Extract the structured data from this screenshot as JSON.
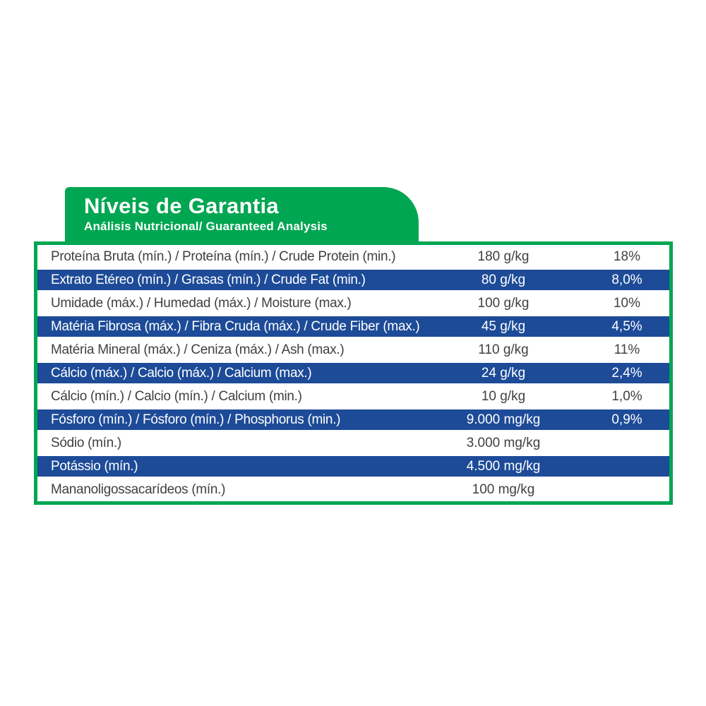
{
  "header": {
    "title": "Níveis de Garantia",
    "subtitle": "Análisis Nutricional/ Guaranteed Analysis"
  },
  "colors": {
    "green": "#00a651",
    "blue": "#1d4b98",
    "text_dark": "#414042",
    "text_light": "#ffffff"
  },
  "table": {
    "rows": [
      {
        "label": "Proteína Bruta (mín.) / Proteína (mín.) / Crude Protein (min.)",
        "amount": "180 g/kg",
        "percent": "18%",
        "highlight": false
      },
      {
        "label": "Extrato Etéreo (mín.) / Grasas (mín.) / Crude Fat (min.)",
        "amount": "80 g/kg",
        "percent": "8,0%",
        "highlight": true
      },
      {
        "label": "Umidade (máx.) / Humedad (máx.) / Moisture (max.)",
        "amount": "100 g/kg",
        "percent": "10%",
        "highlight": false
      },
      {
        "label": "Matéria Fibrosa (máx.) / Fibra Cruda (máx.) / Crude Fiber (max.)",
        "amount": "45 g/kg",
        "percent": "4,5%",
        "highlight": true
      },
      {
        "label": "Matéria Mineral (máx.) / Ceniza (máx.) / Ash (max.)",
        "amount": "110 g/kg",
        "percent": "11%",
        "highlight": false
      },
      {
        "label": "Cálcio (máx.) / Calcio (máx.) / Calcium (max.)",
        "amount": "24 g/kg",
        "percent": "2,4%",
        "highlight": true
      },
      {
        "label": "Cálcio (mín.) / Calcio (mín.) / Calcium (min.)",
        "amount": "10 g/kg",
        "percent": "1,0%",
        "highlight": false
      },
      {
        "label": "Fósforo (mín.) / Fósforo (mín.) / Phosphorus (min.)",
        "amount": "9.000 mg/kg",
        "percent": "0,9%",
        "highlight": true
      },
      {
        "label": "Sódio (mín.)",
        "amount": "3.000 mg/kg",
        "percent": "",
        "highlight": false
      },
      {
        "label": "Potássio (mín.)",
        "amount": "4.500 mg/kg",
        "percent": "",
        "highlight": true
      },
      {
        "label": "Mananoligossacarídeos (mín.)",
        "amount": "100 mg/kg",
        "percent": "",
        "highlight": false
      }
    ]
  }
}
